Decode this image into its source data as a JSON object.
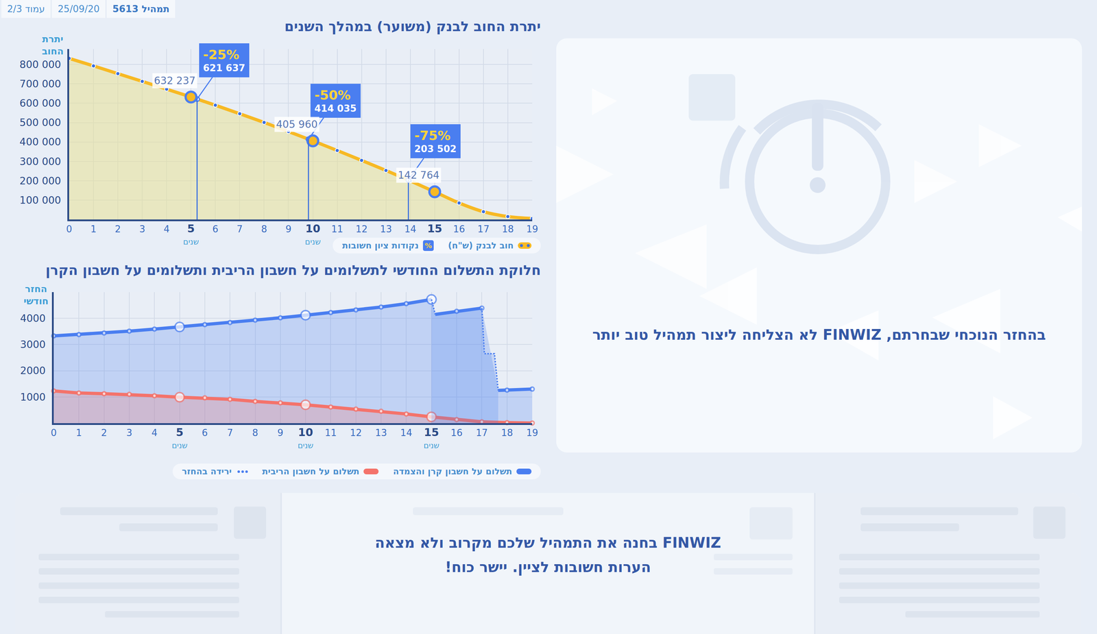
{
  "header": [
    "תמהיל 5613",
    "25/09/20",
    "עמוד 2/3"
  ],
  "chart_data": [
    {
      "type": "line",
      "title": "יתרת החוב לבנק (משוער) במהלך השנים",
      "ylabel": "יתרת החוב",
      "x": [
        0,
        1,
        2,
        3,
        4,
        5,
        6,
        7,
        8,
        9,
        10,
        11,
        12,
        13,
        14,
        15,
        16,
        17,
        18,
        19
      ],
      "series": [
        {
          "name": "חוב לבנק (ש\"ח)",
          "color": "#f7b924",
          "values": [
            832000,
            793000,
            753000,
            713000,
            673000,
            632237,
            590000,
            546000,
            501000,
            454000,
            405960,
            356000,
            305000,
            253000,
            199000,
            142764,
            85000,
            40000,
            15000,
            5000
          ]
        }
      ],
      "milestones": {
        "name": "נקודות ציון חשובות",
        "legend_icon": "%",
        "color": "#4a7ef0",
        "points": [
          {
            "x": 5.25,
            "value": 621637,
            "value_label": "621 637",
            "label": "-25%"
          },
          {
            "x": 9.82,
            "value": 414035,
            "value_label": "414 035",
            "label": "-50%"
          },
          {
            "x": 13.92,
            "value": 203502,
            "value_label": "203 502",
            "label": "-75%"
          }
        ]
      },
      "markers": [
        {
          "x": 5,
          "value": 632237,
          "value_label": "632 237"
        },
        {
          "x": 10,
          "value": 405960,
          "value_label": "405 960"
        },
        {
          "x": 15,
          "value": 142764,
          "value_label": "142 764"
        }
      ],
      "xlim": [
        0,
        19
      ],
      "xticks": [
        0,
        1,
        2,
        3,
        4,
        {
          "value": 5,
          "label": "5",
          "sublabel": "שנים"
        },
        6,
        7,
        8,
        9,
        {
          "value": 10,
          "label": "10",
          "sublabel": "שנים"
        },
        11,
        12,
        13,
        14,
        {
          "value": 15,
          "label": "15",
          "sublabel": "שנים"
        },
        16,
        17,
        18,
        19
      ],
      "ylim": [
        0,
        880000
      ],
      "yticks": [
        {
          "value": 100000,
          "label": "100 000"
        },
        {
          "value": 200000,
          "label": "200 000"
        },
        {
          "value": 300000,
          "label": "300 000"
        },
        {
          "value": 400000,
          "label": "400 000"
        },
        {
          "value": 500000,
          "label": "500 000"
        },
        {
          "value": 600000,
          "label": "600 000"
        },
        {
          "value": 700000,
          "label": "700 000"
        },
        {
          "value": 800000,
          "label": "800 000"
        }
      ],
      "grid": true
    },
    {
      "type": "line",
      "title": "חלוקת התשלום החודשי לתשלומים על חשבון הריבית ותשלומים על חשבון הקרן",
      "ylabel": "החזר חודשי",
      "series": [
        {
          "name": "תשלום על חשבון קרן והצמדה",
          "color": "#4a7ef0",
          "x": [
            0,
            1,
            2,
            3,
            4,
            5,
            6,
            7,
            8,
            9,
            10,
            11,
            12,
            13,
            14,
            15,
            15.1,
            15.15,
            16,
            17,
            17.3,
            17.65,
            18,
            19
          ],
          "values": [
            3330,
            3380,
            3440,
            3510,
            3590,
            3670,
            3760,
            3840,
            3930,
            4020,
            4120,
            4220,
            4320,
            4430,
            4560,
            4720,
            null,
            4150,
            4270,
            4390,
            null,
            1250,
            1260,
            1300
          ]
        },
        {
          "name": "תשלום על חשבון הריבית",
          "color": "#f4736b",
          "x": [
            0,
            1,
            2,
            3,
            4,
            5,
            6,
            7,
            8,
            9,
            10,
            11,
            12,
            13,
            14,
            15,
            16,
            17,
            18,
            19
          ],
          "values": [
            1230,
            1150,
            1125,
            1100,
            1045,
            990,
            965,
            910,
            830,
            775,
            700,
            615,
            535,
            455,
            350,
            240,
            135,
            50,
            20,
            5
          ]
        },
        {
          "name": "ירידה בהחזר",
          "color": "#4a7ef0",
          "line_style": "dot",
          "x": [
            15,
            15.15,
            16,
            17,
            17.1,
            17.5,
            17.65
          ],
          "values": [
            4720,
            4150,
            null,
            4390,
            2650,
            2650,
            1250
          ]
        }
      ],
      "xlim": [
        0,
        19
      ],
      "xticks": [
        0,
        1,
        2,
        3,
        4,
        {
          "value": 5,
          "label": "5",
          "sublabel": "שנים"
        },
        6,
        7,
        8,
        9,
        {
          "value": 10,
          "label": "10",
          "sublabel": "שנים"
        },
        11,
        12,
        13,
        14,
        {
          "value": 15,
          "label": "15",
          "sublabel": "שנים"
        },
        16,
        17,
        18,
        19
      ],
      "ylim": [
        0,
        5000
      ],
      "yticks": [
        1000,
        2000,
        3000,
        4000
      ],
      "grid": true
    }
  ],
  "panels": {
    "result": "בהחזר הנוכחי שבחרתם, FINWIZ לא הצליחה ליצור תמהיל טוב יותר",
    "notes": [
      "FINWIZ בחנה את התמהיל שלכם מקרוב ולא מצאה",
      "הערות חשובות לציין. יישר כוח!"
    ]
  }
}
